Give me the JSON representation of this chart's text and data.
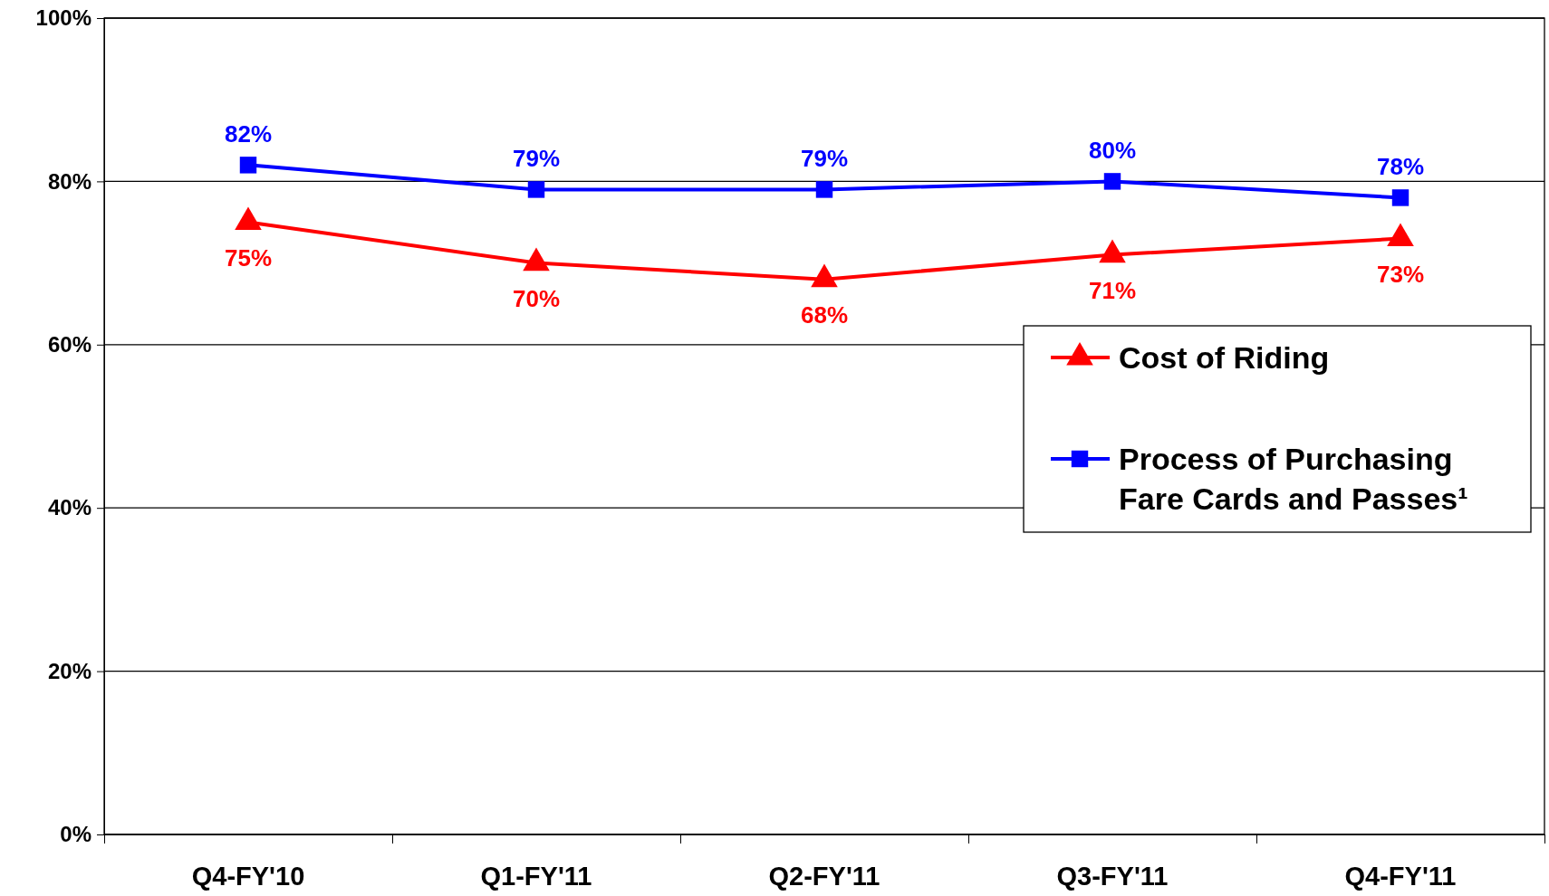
{
  "chart_data": {
    "type": "line",
    "categories": [
      "Q4-FY'10",
      "Q1-FY'11",
      "Q2-FY'11",
      "Q3-FY'11",
      "Q4-FY'11"
    ],
    "series": [
      {
        "name": "Cost of Riding",
        "color": "#ff0000",
        "marker": "triangle",
        "values": [
          75,
          70,
          68,
          71,
          73
        ],
        "value_labels": [
          "75%",
          "70%",
          "68%",
          "71%",
          "73%"
        ]
      },
      {
        "name": "Process of Purchasing Fare Cards and Passes¹",
        "color": "#0000ff",
        "marker": "square",
        "values": [
          82,
          79,
          79,
          80,
          78
        ],
        "value_labels": [
          "82%",
          "79%",
          "79%",
          "80%",
          "78%"
        ]
      }
    ],
    "ylim": [
      0,
      100
    ],
    "yticks": [
      {
        "value": 0,
        "label": "0%"
      },
      {
        "value": 20,
        "label": "20%"
      },
      {
        "value": 40,
        "label": "40%"
      },
      {
        "value": 60,
        "label": "60%"
      },
      {
        "value": 80,
        "label": "80%"
      },
      {
        "value": 100,
        "label": "100%"
      }
    ],
    "grid": "y",
    "legend": "right",
    "line_style": "solid"
  }
}
